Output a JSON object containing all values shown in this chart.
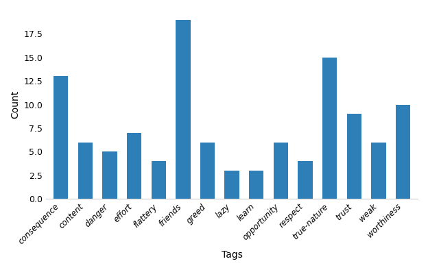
{
  "categories": [
    "consequence",
    "content",
    "danger",
    "effort",
    "flattery",
    "friends",
    "greed",
    "lazy",
    "learn",
    "opportunity",
    "respect",
    "true-nature",
    "trust",
    "weak",
    "worthiness"
  ],
  "values": [
    13,
    6,
    5,
    7,
    4,
    19,
    6,
    3,
    3,
    6,
    4,
    15,
    9,
    6,
    10
  ],
  "bar_color": "#2E7EB8",
  "xlabel": "Tags",
  "ylabel": "Count",
  "ylim": [
    0,
    20
  ],
  "yticks": [
    0.0,
    2.5,
    5.0,
    7.5,
    10.0,
    12.5,
    15.0,
    17.5
  ],
  "ytick_labels": [
    "0.0",
    "2.5",
    "5.0",
    "7.5",
    "10.0",
    "12.5",
    "15.0",
    "17.5"
  ],
  "background_color": "#ffffff"
}
